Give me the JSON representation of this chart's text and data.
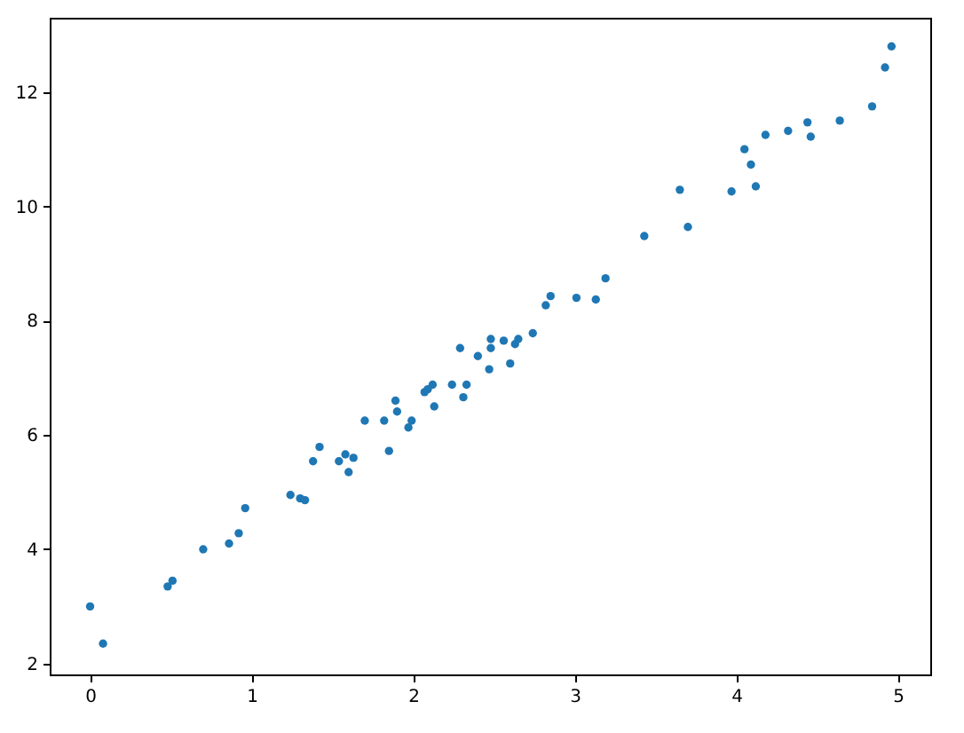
{
  "chart_data": {
    "type": "scatter",
    "color": "#1f77b4",
    "marker": "circle",
    "grid": false,
    "xlim": [
      -0.25,
      5.2
    ],
    "ylim": [
      1.81,
      13.3
    ],
    "xticks": [
      0,
      1,
      2,
      3,
      4,
      5
    ],
    "yticks": [
      2,
      4,
      6,
      8,
      10,
      12
    ],
    "x": [
      0.0,
      0.08,
      0.48,
      0.51,
      0.7,
      0.86,
      0.92,
      0.96,
      1.24,
      1.3,
      1.33,
      1.38,
      1.42,
      1.54,
      1.58,
      1.6,
      1.63,
      1.7,
      1.82,
      1.85,
      1.89,
      1.9,
      1.97,
      1.99,
      2.07,
      2.09,
      2.12,
      2.13,
      2.24,
      2.31,
      2.33,
      2.29,
      2.4,
      2.47,
      2.48,
      2.48,
      2.56,
      2.6,
      2.63,
      2.65,
      2.74,
      2.82,
      2.85,
      3.01,
      3.13,
      3.19,
      3.43,
      3.65,
      3.7,
      3.97,
      4.05,
      4.09,
      4.12,
      4.18,
      4.32,
      4.44,
      4.46,
      4.64,
      4.84,
      4.92,
      4.96
    ],
    "values": [
      3.0,
      2.35,
      3.35,
      3.45,
      4.0,
      4.1,
      4.28,
      4.72,
      4.95,
      4.89,
      4.86,
      5.54,
      5.79,
      5.54,
      5.66,
      5.35,
      5.6,
      6.25,
      6.25,
      5.72,
      6.6,
      6.41,
      6.13,
      6.25,
      6.75,
      6.8,
      6.88,
      6.5,
      6.88,
      6.66,
      6.88,
      7.52,
      7.38,
      7.15,
      7.68,
      7.52,
      7.65,
      7.25,
      7.59,
      7.68,
      7.78,
      8.27,
      8.43,
      8.4,
      8.37,
      8.74,
      9.48,
      10.29,
      9.64,
      10.26,
      11.0,
      10.73,
      10.35,
      11.25,
      11.32,
      11.47,
      11.22,
      11.5,
      11.75,
      12.43,
      12.8
    ]
  }
}
